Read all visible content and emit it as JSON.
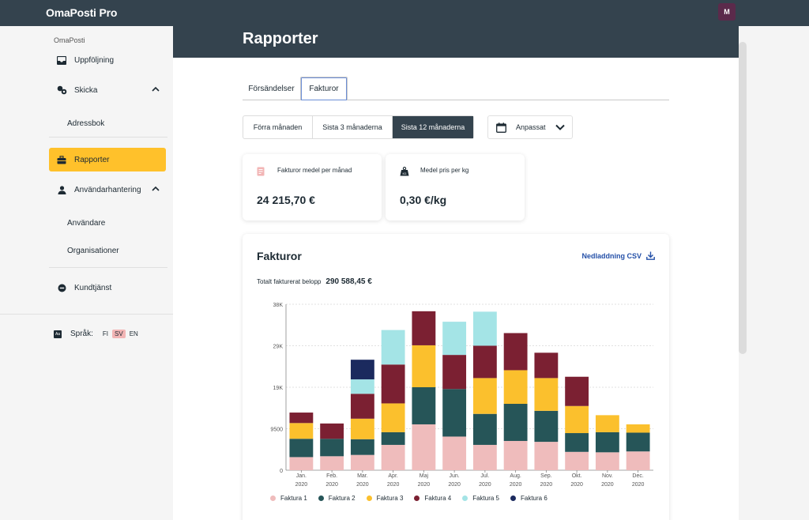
{
  "app": {
    "brand": "OmaPosti Pro",
    "avatar_initial": "M"
  },
  "sidebar": {
    "section": "OmaPosti",
    "items": [
      {
        "label": "Uppföljning",
        "icon": "inbox-icon"
      },
      {
        "label": "Skicka",
        "icon": "send-icon"
      },
      {
        "label": "Adressbok"
      },
      {
        "label": "Rapporter",
        "icon": "briefcase-icon"
      },
      {
        "label": "Användarhantering",
        "icon": "person-icon"
      },
      {
        "label": "Användare"
      },
      {
        "label": "Organisationer"
      },
      {
        "label": "Kundtjänst",
        "icon": "chat-icon"
      }
    ],
    "language": {
      "label": "Språk:",
      "options": [
        "FI",
        "SV",
        "EN"
      ],
      "selected": "SV"
    }
  },
  "page": {
    "title": "Rapporter"
  },
  "tabs": [
    "Försändelser",
    "Fakturor"
  ],
  "active_tab": "Fakturor",
  "range": {
    "options": [
      "Förra månaden",
      "Sista 3 månaderna",
      "Sista 12 månaderna"
    ],
    "selected": "Sista 12 månaderna",
    "custom": "Anpassat"
  },
  "stats": [
    {
      "label": "Fakturor medel per månad",
      "value": "24 215,70 €",
      "icon": "invoice-icon"
    },
    {
      "label": "Medel pris per kg",
      "value": "0,30 €/kg",
      "icon": "weight-icon"
    }
  ],
  "card": {
    "title": "Fakturor",
    "download": "Nedladdning CSV",
    "total_label": "Totalt fakturerat belopp",
    "total_value": "290 588,45 €"
  },
  "colors": {
    "Faktura 1": "#efbcbc",
    "Faktura 2": "#265558",
    "Faktura 3": "#fbc02d",
    "Faktura 4": "#7b2032",
    "Faktura 5": "#a4e4e6",
    "Faktura 6": "#1b2a5e"
  },
  "chart_data": {
    "type": "bar",
    "stacked": true,
    "y_ticks": [
      "0",
      "9500",
      "19K",
      "29K",
      "38K"
    ],
    "ylim": [
      0,
      38000
    ],
    "categories": [
      [
        "Jan.",
        "2020"
      ],
      [
        "Feb.",
        "2020"
      ],
      [
        "Mar.",
        "2020"
      ],
      [
        "Apr.",
        "2020"
      ],
      [
        "Maj",
        "2020"
      ],
      [
        "Jun.",
        "2020"
      ],
      [
        "Jul.",
        "2020"
      ],
      [
        "Aug.",
        "2020"
      ],
      [
        "Sep.",
        "2020"
      ],
      [
        "Okt.",
        "2020"
      ],
      [
        "Nov.",
        "2020"
      ],
      [
        "Dec.",
        "2020"
      ]
    ],
    "series": [
      {
        "name": "Faktura 1",
        "values": [
          3000,
          3200,
          3500,
          5800,
          10500,
          7700,
          5800,
          6700,
          6500,
          4200,
          4100,
          4300
        ]
      },
      {
        "name": "Faktura 2",
        "values": [
          4200,
          4000,
          3600,
          2900,
          8500,
          10900,
          7100,
          8500,
          7100,
          4300,
          4600,
          4300
        ]
      },
      {
        "name": "Faktura 3",
        "values": [
          3600,
          0,
          4700,
          6600,
          9600,
          0,
          8200,
          7700,
          7500,
          6200,
          3900,
          1900
        ]
      },
      {
        "name": "Faktura 4",
        "values": [
          2400,
          3500,
          5700,
          8900,
          7800,
          7800,
          7400,
          8500,
          5800,
          6700,
          0,
          0
        ]
      },
      {
        "name": "Faktura 5",
        "values": [
          0,
          0,
          3300,
          7900,
          0,
          7600,
          7800,
          0,
          0,
          0,
          0,
          0
        ]
      },
      {
        "name": "Faktura 6",
        "values": [
          0,
          0,
          4500,
          0,
          0,
          0,
          0,
          0,
          0,
          0,
          0,
          0
        ]
      }
    ]
  }
}
